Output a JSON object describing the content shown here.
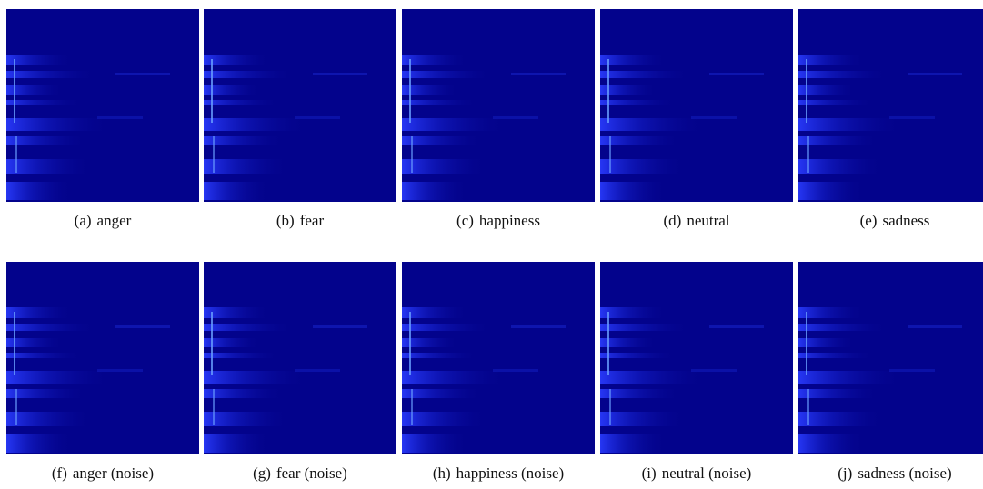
{
  "figure": {
    "panels": [
      {
        "tag": "(a)",
        "caption": "anger"
      },
      {
        "tag": "(b)",
        "caption": "fear"
      },
      {
        "tag": "(c)",
        "caption": "happiness"
      },
      {
        "tag": "(d)",
        "caption": "neutral"
      },
      {
        "tag": "(e)",
        "caption": "sadness"
      },
      {
        "tag": "(f)",
        "caption": "anger (noise)"
      },
      {
        "tag": "(g)",
        "caption": "fear (noise)"
      },
      {
        "tag": "(h)",
        "caption": "happiness (noise)"
      },
      {
        "tag": "(i)",
        "caption": "neutral (noise)"
      },
      {
        "tag": "(j)",
        "caption": "sadness (noise)"
      }
    ]
  }
}
